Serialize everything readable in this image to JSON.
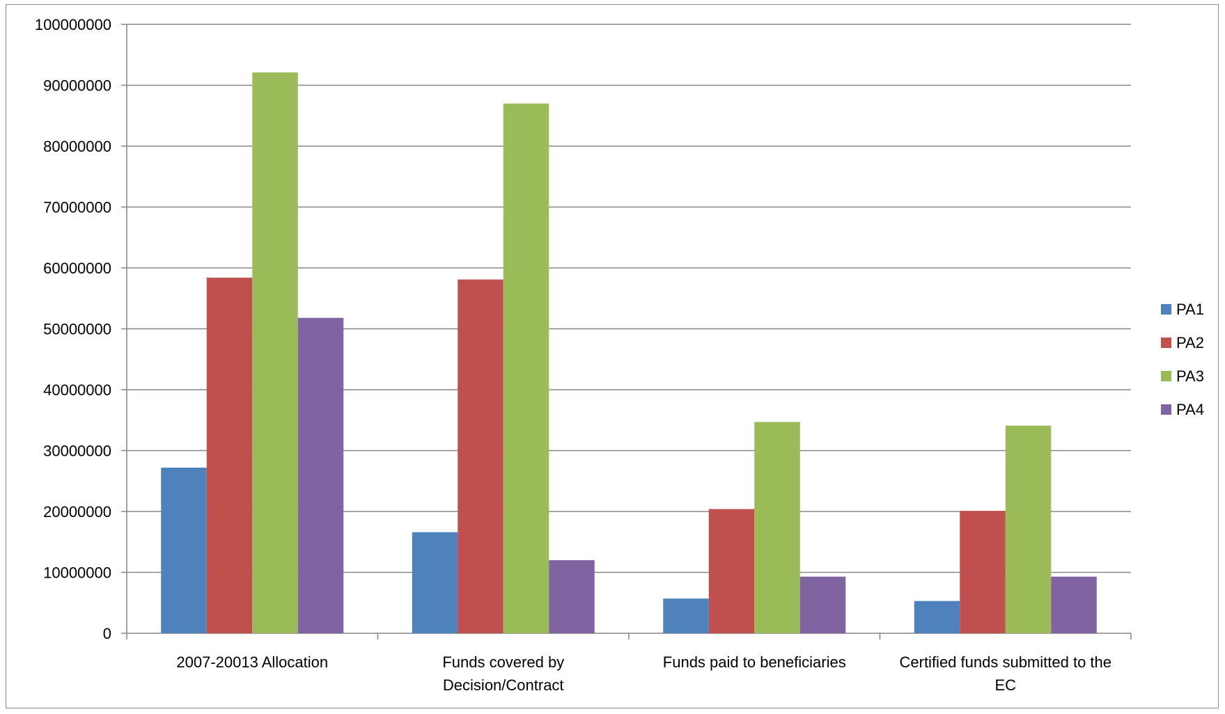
{
  "chart_data": {
    "type": "bar",
    "categories": [
      [
        "2007-20013 Allocation"
      ],
      [
        "Funds covered by",
        "Decision/Contract"
      ],
      [
        "Funds paid to beneficiaries"
      ],
      [
        "Certified funds submitted to the",
        "EC"
      ]
    ],
    "series": [
      {
        "name": "PA1",
        "color": "#4F81BD",
        "values": [
          27200000,
          16600000,
          5700000,
          5300000
        ]
      },
      {
        "name": "PA2",
        "color": "#C0504D",
        "values": [
          58400000,
          58100000,
          20400000,
          20100000
        ]
      },
      {
        "name": "PA3",
        "color": "#9BBB59",
        "values": [
          92100000,
          87000000,
          34700000,
          34100000
        ]
      },
      {
        "name": "PA4",
        "color": "#8064A2",
        "values": [
          51800000,
          12000000,
          9300000,
          9300000
        ]
      }
    ],
    "yticks": [
      "0",
      "10000000",
      "20000000",
      "30000000",
      "40000000",
      "50000000",
      "60000000",
      "70000000",
      "80000000",
      "90000000",
      "100000000"
    ],
    "ylim": [
      0,
      100000000
    ],
    "grid": true,
    "legend_position": "right",
    "gridline_color": "#868686",
    "axis_color": "#868686"
  }
}
